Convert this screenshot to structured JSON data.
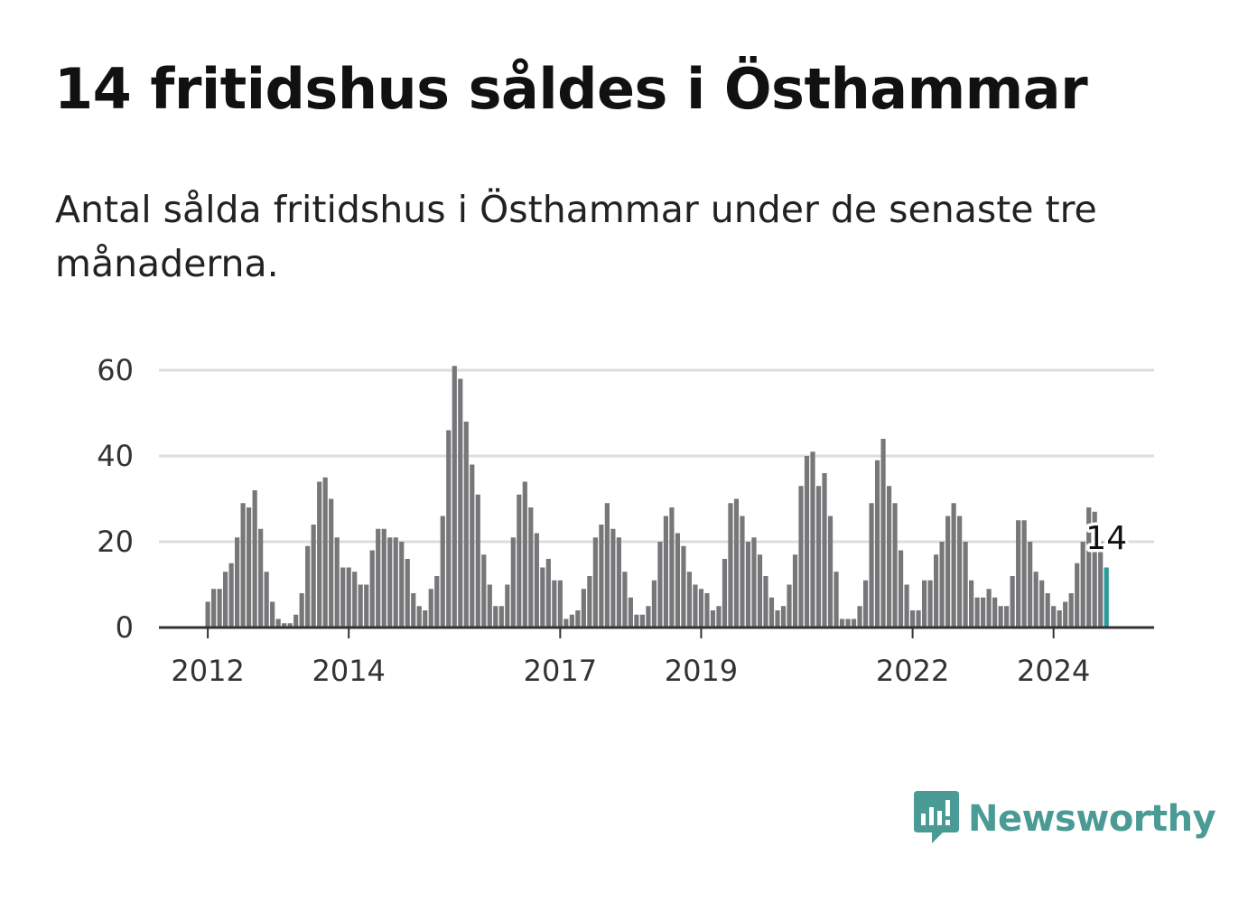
{
  "title": "14 fritidshus såldes i Östhammar",
  "subtitle": "Antal sålda fritidshus i Östhammar under de senaste tre månaderna.",
  "brand": {
    "name": "Newsworthy",
    "icon": "newsworthy-logo-icon",
    "color": "#4a9a95"
  },
  "colors": {
    "bar": "#77777a",
    "highlight": "#2a9d99",
    "grid": "#dddddd",
    "axis": "#333333",
    "text": "#333333"
  },
  "chart_data": {
    "type": "bar",
    "title": "14 fritidshus såldes i Östhammar",
    "xlabel": "",
    "ylabel": "",
    "ylim": [
      0,
      60
    ],
    "yticks": [
      "0",
      "20",
      "40",
      "60"
    ],
    "xtick_labels": [
      {
        "label": "2012",
        "index": 0
      },
      {
        "label": "2014",
        "index": 24
      },
      {
        "label": "2017",
        "index": 60
      },
      {
        "label": "2019",
        "index": 84
      },
      {
        "label": "2022",
        "index": 120
      },
      {
        "label": "2024",
        "index": 144
      }
    ],
    "start": "2012-01",
    "values": [
      6,
      9,
      9,
      13,
      15,
      21,
      29,
      28,
      32,
      23,
      13,
      6,
      2,
      1,
      1,
      3,
      8,
      19,
      24,
      34,
      35,
      30,
      21,
      14,
      14,
      13,
      10,
      10,
      18,
      23,
      23,
      21,
      21,
      20,
      16,
      8,
      5,
      4,
      9,
      12,
      26,
      46,
      61,
      58,
      48,
      38,
      31,
      17,
      10,
      5,
      5,
      10,
      21,
      31,
      34,
      28,
      22,
      14,
      16,
      11,
      11,
      2,
      3,
      4,
      9,
      12,
      21,
      24,
      29,
      23,
      21,
      13,
      7,
      3,
      3,
      5,
      11,
      20,
      26,
      28,
      22,
      19,
      13,
      10,
      9,
      8,
      4,
      5,
      16,
      29,
      30,
      26,
      20,
      21,
      17,
      12,
      7,
      4,
      5,
      10,
      17,
      33,
      40,
      41,
      33,
      36,
      26,
      13,
      2,
      2,
      2,
      5,
      11,
      29,
      39,
      44,
      33,
      29,
      18,
      10,
      4,
      4,
      11,
      11,
      17,
      20,
      26,
      29,
      26,
      20,
      11,
      7,
      7,
      9,
      7,
      5,
      5,
      12,
      25,
      25,
      20,
      13,
      11,
      8,
      5,
      4,
      6,
      8,
      15,
      20,
      28,
      27,
      20,
      14
    ],
    "highlight": {
      "index": 153,
      "value": 14,
      "label": "14"
    }
  }
}
